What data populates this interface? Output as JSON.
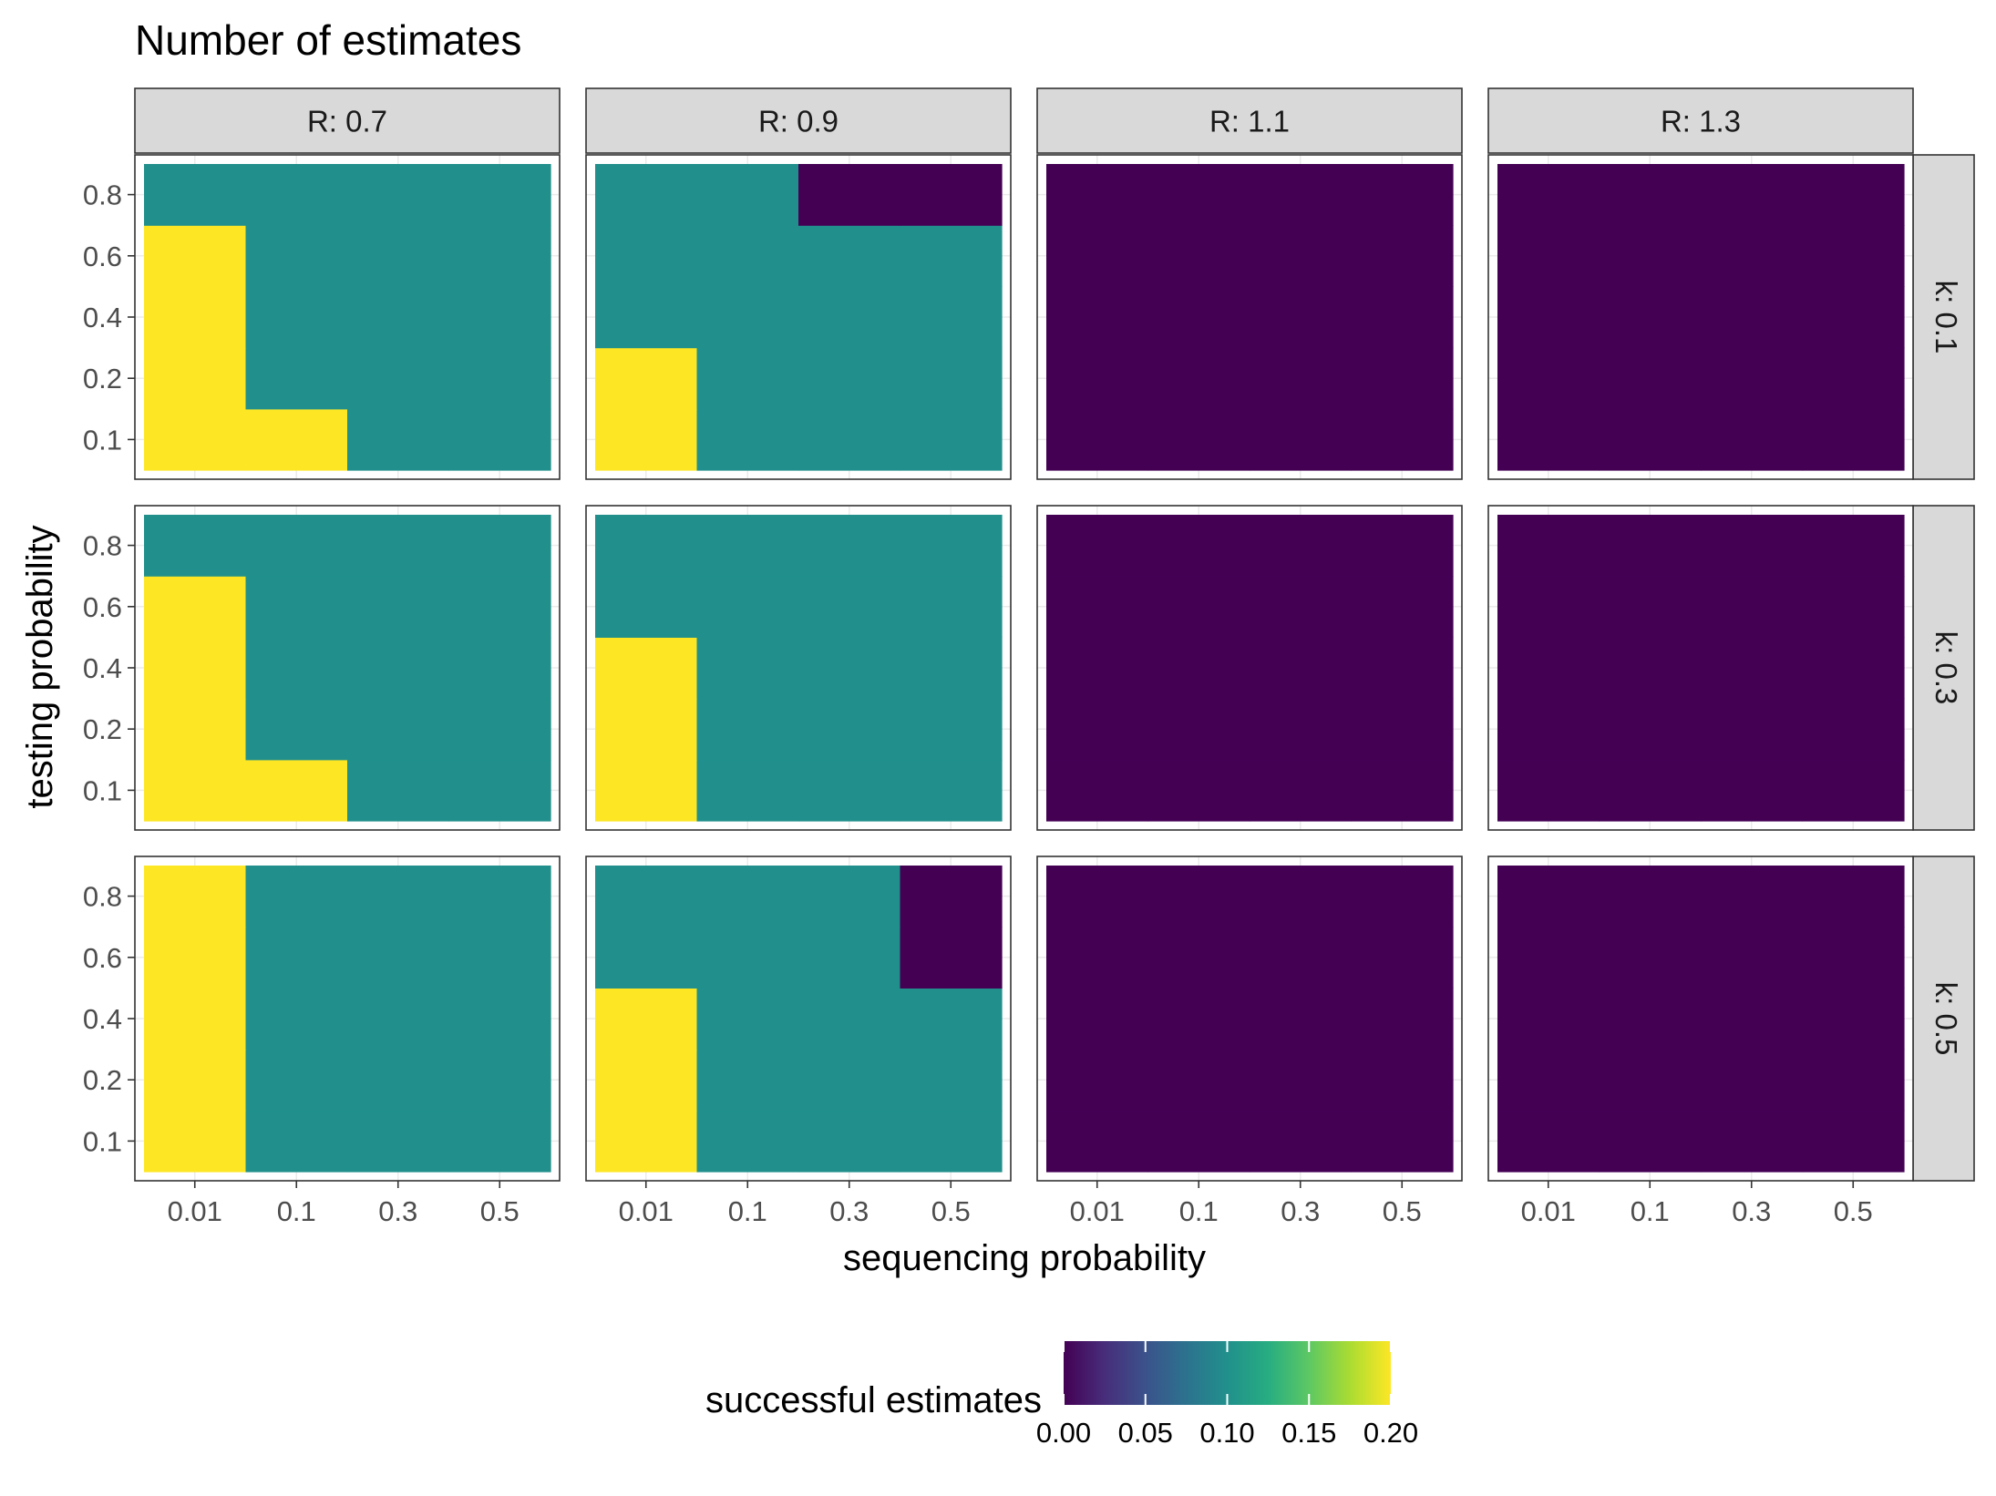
{
  "chart_data": {
    "type": "heatmap",
    "title": "Number of estimates",
    "xlabel": "sequencing probability",
    "ylabel": "testing probability",
    "x_categories": [
      "0.01",
      "0.1",
      "0.3",
      "0.5"
    ],
    "y_categories": [
      "0.1",
      "0.2",
      "0.4",
      "0.6",
      "0.8"
    ],
    "col_facets": [
      "R: 0.7",
      "R: 0.9",
      "R: 1.1",
      "R: 1.3"
    ],
    "row_facets": [
      "k: 0.1",
      "k: 0.3",
      "k: 0.5"
    ],
    "legend": {
      "title": "successful estimates",
      "position": "bottom",
      "range": [
        0,
        0.2
      ],
      "ticks": [
        "0.00",
        "0.05",
        "0.10",
        "0.15",
        "0.20"
      ],
      "colormap": "viridis"
    },
    "panels": [
      {
        "row": "k: 0.1",
        "col": "R: 0.7",
        "values": [
          [
            0.2,
            0.2,
            0.1,
            0.1
          ],
          [
            0.2,
            0.1,
            0.1,
            0.1
          ],
          [
            0.2,
            0.1,
            0.1,
            0.1
          ],
          [
            0.2,
            0.1,
            0.1,
            0.1
          ],
          [
            0.1,
            0.1,
            0.1,
            0.1
          ]
        ]
      },
      {
        "row": "k: 0.1",
        "col": "R: 0.9",
        "values": [
          [
            0.2,
            0.1,
            0.1,
            0.1
          ],
          [
            0.2,
            0.1,
            0.1,
            0.1
          ],
          [
            0.1,
            0.1,
            0.1,
            0.1
          ],
          [
            0.1,
            0.1,
            0.1,
            0.1
          ],
          [
            0.1,
            0.1,
            0,
            0
          ]
        ]
      },
      {
        "row": "k: 0.1",
        "col": "R: 1.1",
        "values": [
          [
            0,
            0,
            0,
            0
          ],
          [
            0,
            0,
            0,
            0
          ],
          [
            0,
            0,
            0,
            0
          ],
          [
            0,
            0,
            0,
            0
          ],
          [
            0,
            0,
            0,
            0
          ]
        ]
      },
      {
        "row": "k: 0.1",
        "col": "R: 1.3",
        "values": [
          [
            0,
            0,
            0,
            0
          ],
          [
            0,
            0,
            0,
            0
          ],
          [
            0,
            0,
            0,
            0
          ],
          [
            0,
            0,
            0,
            0
          ],
          [
            0,
            0,
            0,
            0
          ]
        ]
      },
      {
        "row": "k: 0.3",
        "col": "R: 0.7",
        "values": [
          [
            0.2,
            0.2,
            0.1,
            0.1
          ],
          [
            0.2,
            0.1,
            0.1,
            0.1
          ],
          [
            0.2,
            0.1,
            0.1,
            0.1
          ],
          [
            0.2,
            0.1,
            0.1,
            0.1
          ],
          [
            0.1,
            0.1,
            0.1,
            0.1
          ]
        ]
      },
      {
        "row": "k: 0.3",
        "col": "R: 0.9",
        "values": [
          [
            0.2,
            0.1,
            0.1,
            0.1
          ],
          [
            0.2,
            0.1,
            0.1,
            0.1
          ],
          [
            0.2,
            0.1,
            0.1,
            0.1
          ],
          [
            0.1,
            0.1,
            0.1,
            0.1
          ],
          [
            0.1,
            0.1,
            0.1,
            0.1
          ]
        ]
      },
      {
        "row": "k: 0.3",
        "col": "R: 1.1",
        "values": [
          [
            0,
            0,
            0,
            0
          ],
          [
            0,
            0,
            0,
            0
          ],
          [
            0,
            0,
            0,
            0
          ],
          [
            0,
            0,
            0,
            0
          ],
          [
            0,
            0,
            0,
            0
          ]
        ]
      },
      {
        "row": "k: 0.3",
        "col": "R: 1.3",
        "values": [
          [
            0,
            0,
            0,
            0
          ],
          [
            0,
            0,
            0,
            0
          ],
          [
            0,
            0,
            0,
            0
          ],
          [
            0,
            0,
            0,
            0
          ],
          [
            0,
            0,
            0,
            0
          ]
        ]
      },
      {
        "row": "k: 0.5",
        "col": "R: 0.7",
        "values": [
          [
            0.2,
            0.1,
            0.1,
            0.1
          ],
          [
            0.2,
            0.1,
            0.1,
            0.1
          ],
          [
            0.2,
            0.1,
            0.1,
            0.1
          ],
          [
            0.2,
            0.1,
            0.1,
            0.1
          ],
          [
            0.2,
            0.1,
            0.1,
            0.1
          ]
        ]
      },
      {
        "row": "k: 0.5",
        "col": "R: 0.9",
        "values": [
          [
            0.2,
            0.1,
            0.1,
            0.1
          ],
          [
            0.2,
            0.1,
            0.1,
            0.1
          ],
          [
            0.2,
            0.1,
            0.1,
            0.1
          ],
          [
            0.1,
            0.1,
            0.1,
            0
          ],
          [
            0.1,
            0.1,
            0.1,
            0
          ]
        ]
      },
      {
        "row": "k: 0.5",
        "col": "R: 1.1",
        "values": [
          [
            0,
            0,
            0,
            0
          ],
          [
            0,
            0,
            0,
            0
          ],
          [
            0,
            0,
            0,
            0
          ],
          [
            0,
            0,
            0,
            0
          ],
          [
            0,
            0,
            0,
            0
          ]
        ]
      },
      {
        "row": "k: 0.5",
        "col": "R: 1.3",
        "values": [
          [
            0,
            0,
            0,
            0
          ],
          [
            0,
            0,
            0,
            0
          ],
          [
            0,
            0,
            0,
            0
          ],
          [
            0,
            0,
            0,
            0
          ],
          [
            0,
            0,
            0,
            0
          ]
        ]
      }
    ]
  }
}
